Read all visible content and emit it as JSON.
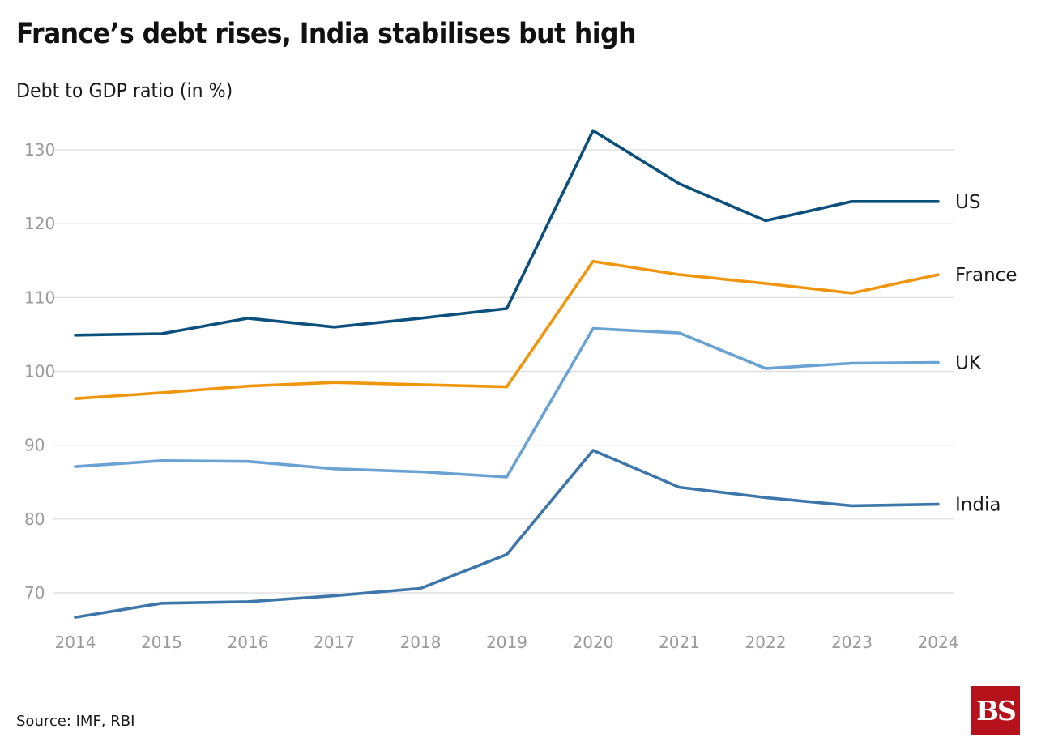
{
  "chart_data": {
    "type": "line",
    "title": "France’s debt rises, India stabilises but high",
    "subtitle": "Debt to GDP ratio (in %)",
    "xlabel": "",
    "ylabel": "Debt to GDP ratio (in %)",
    "x": [
      "2014",
      "2015",
      "2016",
      "2017",
      "2018",
      "2019",
      "2020",
      "2021",
      "2022",
      "2023",
      "2024"
    ],
    "yticks": [
      70,
      80,
      90,
      100,
      110,
      120,
      130
    ],
    "ylim": [
      66,
      134
    ],
    "grid": true,
    "legend": "labels at line ends (right)",
    "series": [
      {
        "name": "US",
        "color": "#0b4f7c",
        "values": [
          104.9,
          105.1,
          107.2,
          106.0,
          107.2,
          108.5,
          132.6,
          125.4,
          120.4,
          123.0,
          123.0
        ]
      },
      {
        "name": "France",
        "color": "#f0960e",
        "values": [
          96.3,
          97.1,
          98.0,
          98.5,
          98.2,
          97.9,
          114.9,
          113.1,
          111.9,
          110.6,
          113.1
        ]
      },
      {
        "name": "UK",
        "color": "#6aa3d3",
        "values": [
          87.1,
          87.9,
          87.8,
          86.8,
          86.4,
          85.7,
          105.8,
          105.2,
          100.4,
          101.1,
          101.2
        ]
      },
      {
        "name": "India",
        "color": "#3d76a8",
        "values": [
          66.7,
          68.6,
          68.8,
          69.6,
          70.6,
          75.2,
          89.3,
          84.3,
          82.9,
          81.8,
          82.0
        ]
      }
    ],
    "source": "Source: IMF, RBI"
  },
  "logo": {
    "text": "BS",
    "color": "#b5121b"
  }
}
